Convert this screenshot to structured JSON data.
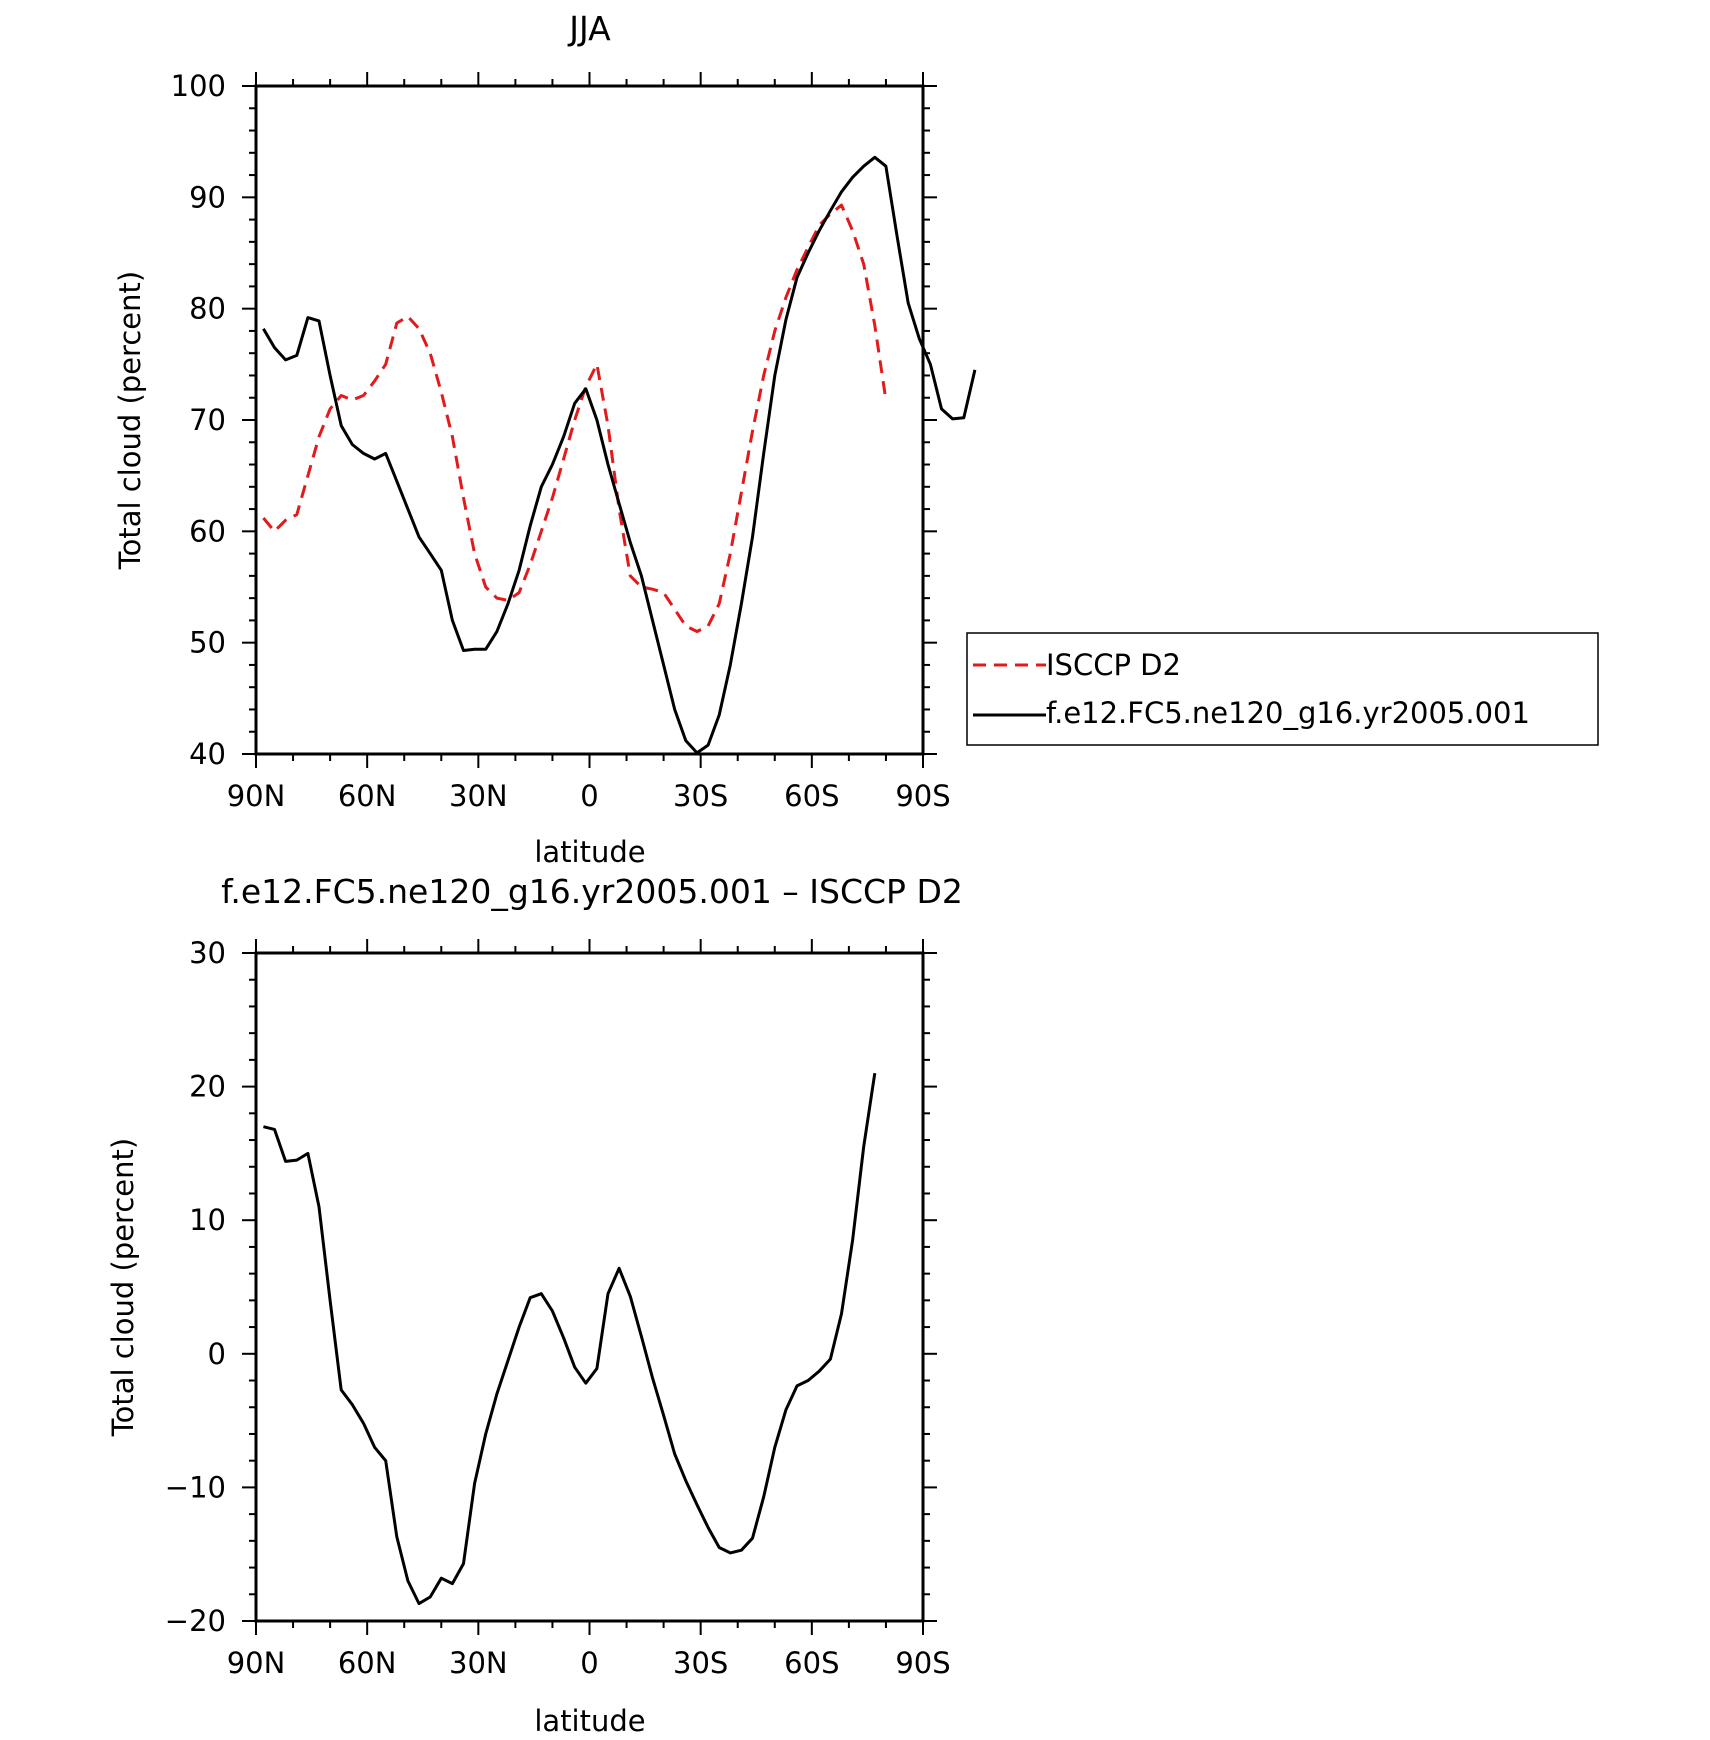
{
  "chart_data": [
    {
      "type": "line",
      "title": "JJA",
      "xlabel": "latitude",
      "ylabel": "Total cloud (percent)",
      "xlim": [
        90,
        -90
      ],
      "ylim": [
        40,
        100
      ],
      "xticks": [
        {
          "value": 90,
          "label": "90N"
        },
        {
          "value": 60,
          "label": "60N"
        },
        {
          "value": 30,
          "label": "30N"
        },
        {
          "value": 0,
          "label": "0"
        },
        {
          "value": -30,
          "label": "30S"
        },
        {
          "value": -60,
          "label": "60S"
        },
        {
          "value": -90,
          "label": "90S"
        }
      ],
      "yticks": [
        40,
        50,
        60,
        70,
        80,
        90,
        100
      ],
      "legend": "right",
      "series": [
        {
          "name": "ISCCP D2",
          "color": "#e31a1c",
          "dash": "dashed",
          "points": [
            [
              88,
              61.2
            ],
            [
              85,
              60
            ],
            [
              82,
              61
            ],
            [
              79,
              61.5
            ],
            [
              76,
              65
            ],
            [
              73,
              68.5
            ],
            [
              70,
              71
            ],
            [
              67,
              72.2
            ],
            [
              64,
              71.8
            ],
            [
              61,
              72.2
            ],
            [
              58,
              73.5
            ],
            [
              55,
              75
            ],
            [
              52,
              78.7
            ],
            [
              49,
              79.3
            ],
            [
              46,
              78.2
            ],
            [
              43,
              76
            ],
            [
              40,
              72.5
            ],
            [
              37,
              68.5
            ],
            [
              34,
              63
            ],
            [
              31,
              58
            ],
            [
              28,
              55
            ],
            [
              25,
              54
            ],
            [
              22,
              53.8
            ],
            [
              19,
              54.5
            ],
            [
              16,
              57
            ],
            [
              13,
              60
            ],
            [
              10,
              63
            ],
            [
              7,
              66.5
            ],
            [
              4,
              70
            ],
            [
              1,
              73
            ],
            [
              -2,
              75
            ],
            [
              -5,
              69.5
            ],
            [
              -8,
              62
            ],
            [
              -11,
              56
            ],
            [
              -14,
              55
            ],
            [
              -17,
              54.8
            ],
            [
              -20,
              54.5
            ],
            [
              -23,
              53
            ],
            [
              -26,
              51.5
            ],
            [
              -29,
              51
            ],
            [
              -32,
              51.5
            ],
            [
              -35,
              53.5
            ],
            [
              -38,
              58
            ],
            [
              -41,
              63.5
            ],
            [
              -44,
              69
            ],
            [
              -47,
              74
            ],
            [
              -50,
              78
            ],
            [
              -53,
              81
            ],
            [
              -56,
              83.5
            ],
            [
              -59,
              85.5
            ],
            [
              -62,
              87.5
            ],
            [
              -65,
              88.5
            ],
            [
              -68,
              89.3
            ],
            [
              -71,
              87
            ],
            [
              -74,
              84
            ],
            [
              -77,
              78.5
            ],
            [
              -80,
              71.8
            ]
          ]
        },
        {
          "name": "f.e12.FC5.ne120_g16.yr2005.001",
          "color": "#000000",
          "dash": "solid",
          "points": [
            [
              88,
              78.2
            ],
            [
              85,
              76.5
            ],
            [
              82,
              75.4
            ],
            [
              79,
              75.8
            ],
            [
              76,
              79.2
            ],
            [
              73,
              78.9
            ],
            [
              70,
              74
            ],
            [
              67,
              69.5
            ],
            [
              64,
              67.8
            ],
            [
              61,
              67
            ],
            [
              58,
              66.5
            ],
            [
              55,
              67
            ],
            [
              52,
              64.5
            ],
            [
              49,
              62
            ],
            [
              46,
              59.5
            ],
            [
              43,
              58
            ],
            [
              40,
              56.5
            ],
            [
              37,
              52
            ],
            [
              34,
              49.3
            ],
            [
              31,
              49.4
            ],
            [
              28,
              49.4
            ],
            [
              25,
              51
            ],
            [
              22,
              53.5
            ],
            [
              19,
              56.5
            ],
            [
              16,
              60.5
            ],
            [
              13,
              64
            ],
            [
              10,
              66
            ],
            [
              7,
              68.5
            ],
            [
              4,
              71.5
            ],
            [
              1,
              72.8
            ],
            [
              -2,
              70
            ],
            [
              -5,
              66
            ],
            [
              -8,
              62.5
            ],
            [
              -11,
              59
            ],
            [
              -14,
              56
            ],
            [
              -17,
              52
            ],
            [
              -20,
              48
            ],
            [
              -23,
              44
            ],
            [
              -26,
              41.2
            ],
            [
              -29,
              40.1
            ],
            [
              -32,
              40.8
            ],
            [
              -35,
              43.5
            ],
            [
              -38,
              48
            ],
            [
              -41,
              53.5
            ],
            [
              -44,
              59.5
            ],
            [
              -47,
              67
            ],
            [
              -50,
              74
            ],
            [
              -53,
              79
            ],
            [
              -56,
              82.8
            ],
            [
              -59,
              85
            ],
            [
              -62,
              87
            ],
            [
              -65,
              88.8
            ],
            [
              -68,
              90.5
            ],
            [
              -71,
              91.8
            ],
            [
              -74,
              92.8
            ],
            [
              -77,
              93.6
            ],
            [
              -80,
              92.8
            ],
            [
              -83,
              86.5
            ],
            [
              -86,
              80.5
            ],
            [
              -89,
              77.3
            ],
            [
              -92,
              75
            ],
            [
              -95,
              71
            ],
            [
              -98,
              70.1
            ],
            [
              -101,
              70.2
            ],
            [
              -104,
              74.5
            ]
          ]
        }
      ]
    },
    {
      "type": "line",
      "title": "f.e12.FC5.ne120_g16.yr2005.001 – ISCCP D2",
      "xlabel": "latitude",
      "ylabel": "Total cloud (percent)",
      "xlim": [
        90,
        -90
      ],
      "ylim": [
        -20,
        30
      ],
      "xticks": [
        {
          "value": 90,
          "label": "90N"
        },
        {
          "value": 60,
          "label": "60N"
        },
        {
          "value": 30,
          "label": "30N"
        },
        {
          "value": 0,
          "label": "0"
        },
        {
          "value": -30,
          "label": "30S"
        },
        {
          "value": -60,
          "label": "60S"
        },
        {
          "value": -90,
          "label": "90S"
        }
      ],
      "yticks": [
        -20,
        -10,
        0,
        10,
        20,
        30
      ],
      "yticklabels": [
        "−20",
        "−10",
        "0",
        "10",
        "20",
        "30"
      ],
      "series": [
        {
          "color": "#000000",
          "dash": "solid",
          "points": [
            [
              88,
              17
            ],
            [
              85,
              16.8
            ],
            [
              82,
              14.4
            ],
            [
              79,
              14.5
            ],
            [
              76,
              15
            ],
            [
              73,
              11
            ],
            [
              70,
              4
            ],
            [
              67,
              -2.7
            ],
            [
              64,
              -3.8
            ],
            [
              61,
              -5.2
            ],
            [
              58,
              -7
            ],
            [
              55,
              -8
            ],
            [
              52,
              -13.7
            ],
            [
              49,
              -17
            ],
            [
              46,
              -18.7
            ],
            [
              43,
              -18.2
            ],
            [
              40,
              -16.8
            ],
            [
              37,
              -17.2
            ],
            [
              34,
              -15.7
            ],
            [
              31,
              -9.7
            ],
            [
              28,
              -6
            ],
            [
              25,
              -3
            ],
            [
              22,
              -0.5
            ],
            [
              19,
              2
            ],
            [
              16,
              4.2
            ],
            [
              13,
              4.5
            ],
            [
              10,
              3.2
            ],
            [
              7,
              1.2
            ],
            [
              4,
              -1
            ],
            [
              1,
              -2.2
            ],
            [
              -2,
              -1.1
            ],
            [
              -5,
              4.5
            ],
            [
              -8,
              6.4
            ],
            [
              -11,
              4.3
            ],
            [
              -14,
              1.3
            ],
            [
              -17,
              -1.8
            ],
            [
              -20,
              -4.6
            ],
            [
              -23,
              -7.5
            ],
            [
              -26,
              -9.5
            ],
            [
              -29,
              -11.3
            ],
            [
              -32,
              -13
            ],
            [
              -35,
              -14.5
            ],
            [
              -38,
              -14.9
            ],
            [
              -41,
              -14.7
            ],
            [
              -44,
              -13.8
            ],
            [
              -47,
              -10.7
            ],
            [
              -50,
              -7
            ],
            [
              -53,
              -4.2
            ],
            [
              -56,
              -2.4
            ],
            [
              -59,
              -2
            ],
            [
              -62,
              -1.3
            ],
            [
              -65,
              -0.4
            ],
            [
              -68,
              3
            ],
            [
              -71,
              8.5
            ],
            [
              -74,
              15.5
            ],
            [
              -77,
              21
            ]
          ]
        }
      ]
    }
  ]
}
